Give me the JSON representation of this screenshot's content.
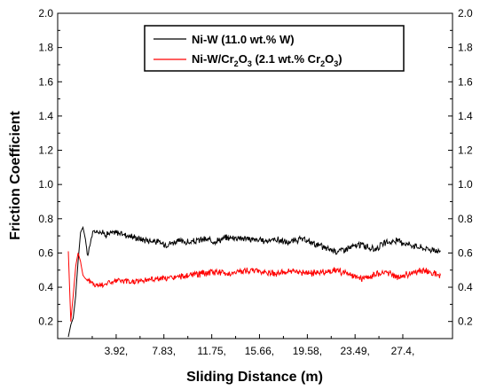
{
  "chart_data": {
    "type": "line",
    "xlabel": "Sliding Distance (m)",
    "ylabel": "Friction Coefficient",
    "xlim": [
      0,
      30.6
    ],
    "ylim": [
      0.1,
      2.0
    ],
    "x_ticks": [
      3.92,
      7.83,
      11.75,
      15.66,
      19.58,
      23.49,
      27.4
    ],
    "x_tick_labels": [
      "3.92,",
      "7.83,",
      "11.75,",
      "15.66,",
      "19.58,",
      "23.49,",
      "27.4,"
    ],
    "y_ticks": [
      0.2,
      0.4,
      0.6,
      0.8,
      1.0,
      1.2,
      1.4,
      1.6,
      1.8,
      2.0
    ],
    "y_tick_labels": [
      "0.2",
      "0.4",
      "0.6",
      "0.8",
      "1.0",
      "1.2",
      "1.4",
      "1.6",
      "1.8",
      "2.0"
    ],
    "right_axis_mirrored": true,
    "grid": false,
    "legend_position": "top-center",
    "series": [
      {
        "legend_main": "Ni-W (11.0 wt.% W)",
        "color": "#000000",
        "x": [
          0,
          0.2,
          0.4,
          0.6,
          0.8,
          1.0,
          1.2,
          1.4,
          1.6,
          1.8,
          2.0,
          2.5,
          3.0,
          4.0,
          5.0,
          6.0,
          7.0,
          8.0,
          9.0,
          10.0,
          11.0,
          12.0,
          13.0,
          14.0,
          15.0,
          16.0,
          17.0,
          18.0,
          19.0,
          20.0,
          21.0,
          22.0,
          23.0,
          24.0,
          25.0,
          26.0,
          27.0,
          28.0,
          29.0,
          30.5
        ],
        "y": [
          0.11,
          0.18,
          0.22,
          0.35,
          0.55,
          0.72,
          0.75,
          0.68,
          0.58,
          0.66,
          0.72,
          0.73,
          0.71,
          0.72,
          0.7,
          0.68,
          0.67,
          0.65,
          0.67,
          0.66,
          0.68,
          0.67,
          0.69,
          0.69,
          0.68,
          0.67,
          0.68,
          0.66,
          0.68,
          0.66,
          0.63,
          0.61,
          0.63,
          0.65,
          0.62,
          0.66,
          0.67,
          0.65,
          0.63,
          0.61
        ]
      },
      {
        "legend_main": "Ni-W/Cr",
        "legend_sub1": "2",
        "legend_mid1": "O",
        "legend_sub2": "3",
        "legend_mid2": " (2.1 wt.% Cr",
        "legend_sub3": "2",
        "legend_mid3": "O",
        "legend_sub4": "3",
        "legend_end": ")",
        "color": "#ff0000",
        "x": [
          0,
          0.2,
          0.4,
          0.6,
          0.8,
          1.0,
          1.2,
          1.4,
          1.6,
          1.8,
          2.0,
          2.5,
          3.0,
          3.5,
          4.0,
          5.0,
          6.0,
          7.0,
          8.0,
          9.0,
          10.0,
          11.0,
          12.0,
          13.0,
          14.0,
          15.0,
          16.0,
          17.0,
          18.0,
          19.0,
          20.0,
          21.0,
          22.0,
          23.0,
          24.0,
          25.0,
          26.0,
          27.0,
          28.0,
          29.0,
          30.5
        ],
        "y": [
          0.61,
          0.2,
          0.35,
          0.52,
          0.6,
          0.55,
          0.47,
          0.45,
          0.44,
          0.43,
          0.42,
          0.41,
          0.42,
          0.43,
          0.44,
          0.43,
          0.44,
          0.45,
          0.45,
          0.46,
          0.47,
          0.48,
          0.49,
          0.48,
          0.49,
          0.5,
          0.49,
          0.48,
          0.49,
          0.49,
          0.48,
          0.49,
          0.5,
          0.47,
          0.45,
          0.47,
          0.49,
          0.46,
          0.48,
          0.5,
          0.47
        ]
      }
    ]
  }
}
